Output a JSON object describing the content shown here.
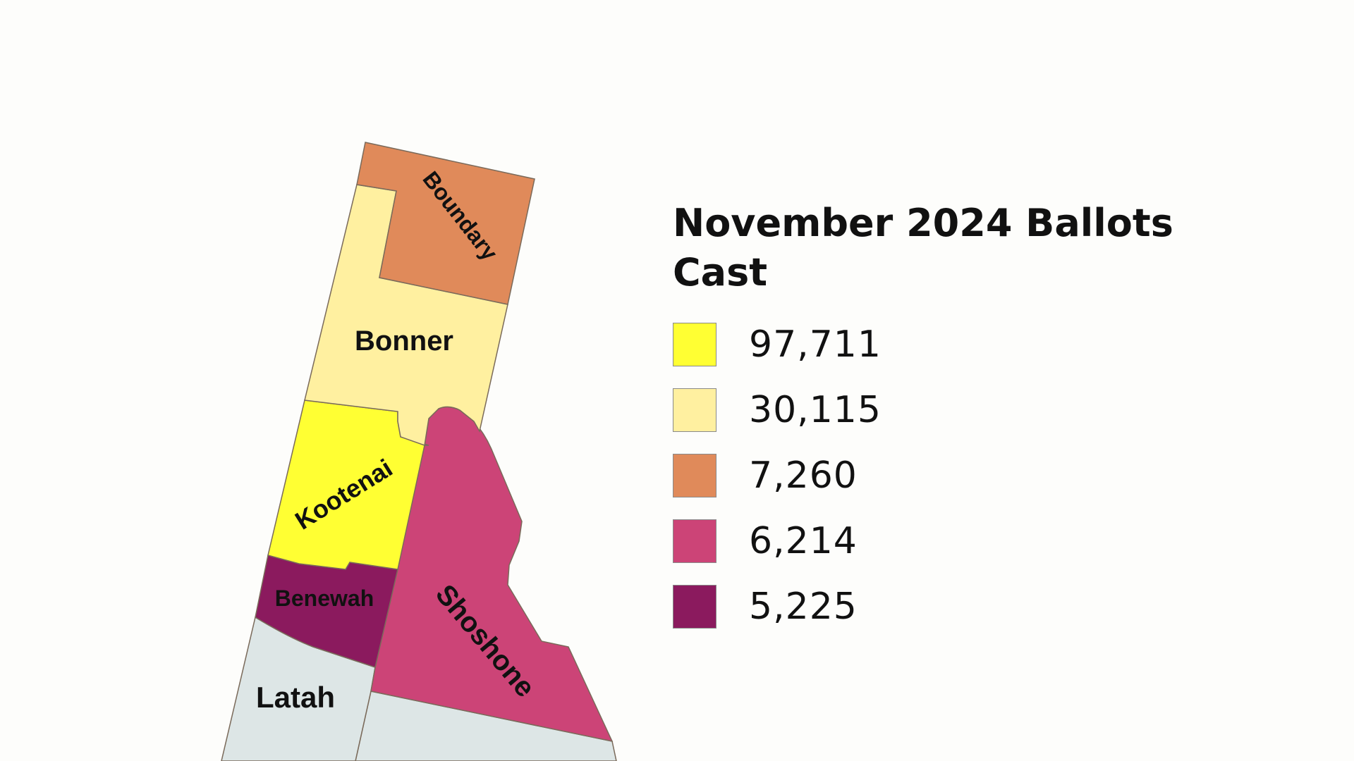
{
  "legend": {
    "title": "November 2024 Ballots Cast",
    "items": [
      {
        "label": "97,711",
        "color": "#ffff33"
      },
      {
        "label": "30,115",
        "color": "#fff0a0"
      },
      {
        "label": "7,260",
        "color": "#e08a5a"
      },
      {
        "label": "6,214",
        "color": "#cc4477"
      },
      {
        "label": "5,225",
        "color": "#8b1a5e"
      }
    ]
  },
  "counties": [
    {
      "name": "Boundary",
      "ballots": "7,260",
      "color": "#e08a5a"
    },
    {
      "name": "Bonner",
      "ballots": "30,115",
      "color": "#fff0a0"
    },
    {
      "name": "Kootenai",
      "ballots": "97,711",
      "color": "#ffff33"
    },
    {
      "name": "Benewah",
      "ballots": "5,225",
      "color": "#8b1a5e"
    },
    {
      "name": "Shoshone",
      "ballots": "6,214",
      "color": "#cc4477"
    },
    {
      "name": "Latah",
      "ballots": "",
      "color": "#dde6e6"
    },
    {
      "name": "",
      "ballots": "",
      "color": "#dde6e6"
    }
  ]
}
